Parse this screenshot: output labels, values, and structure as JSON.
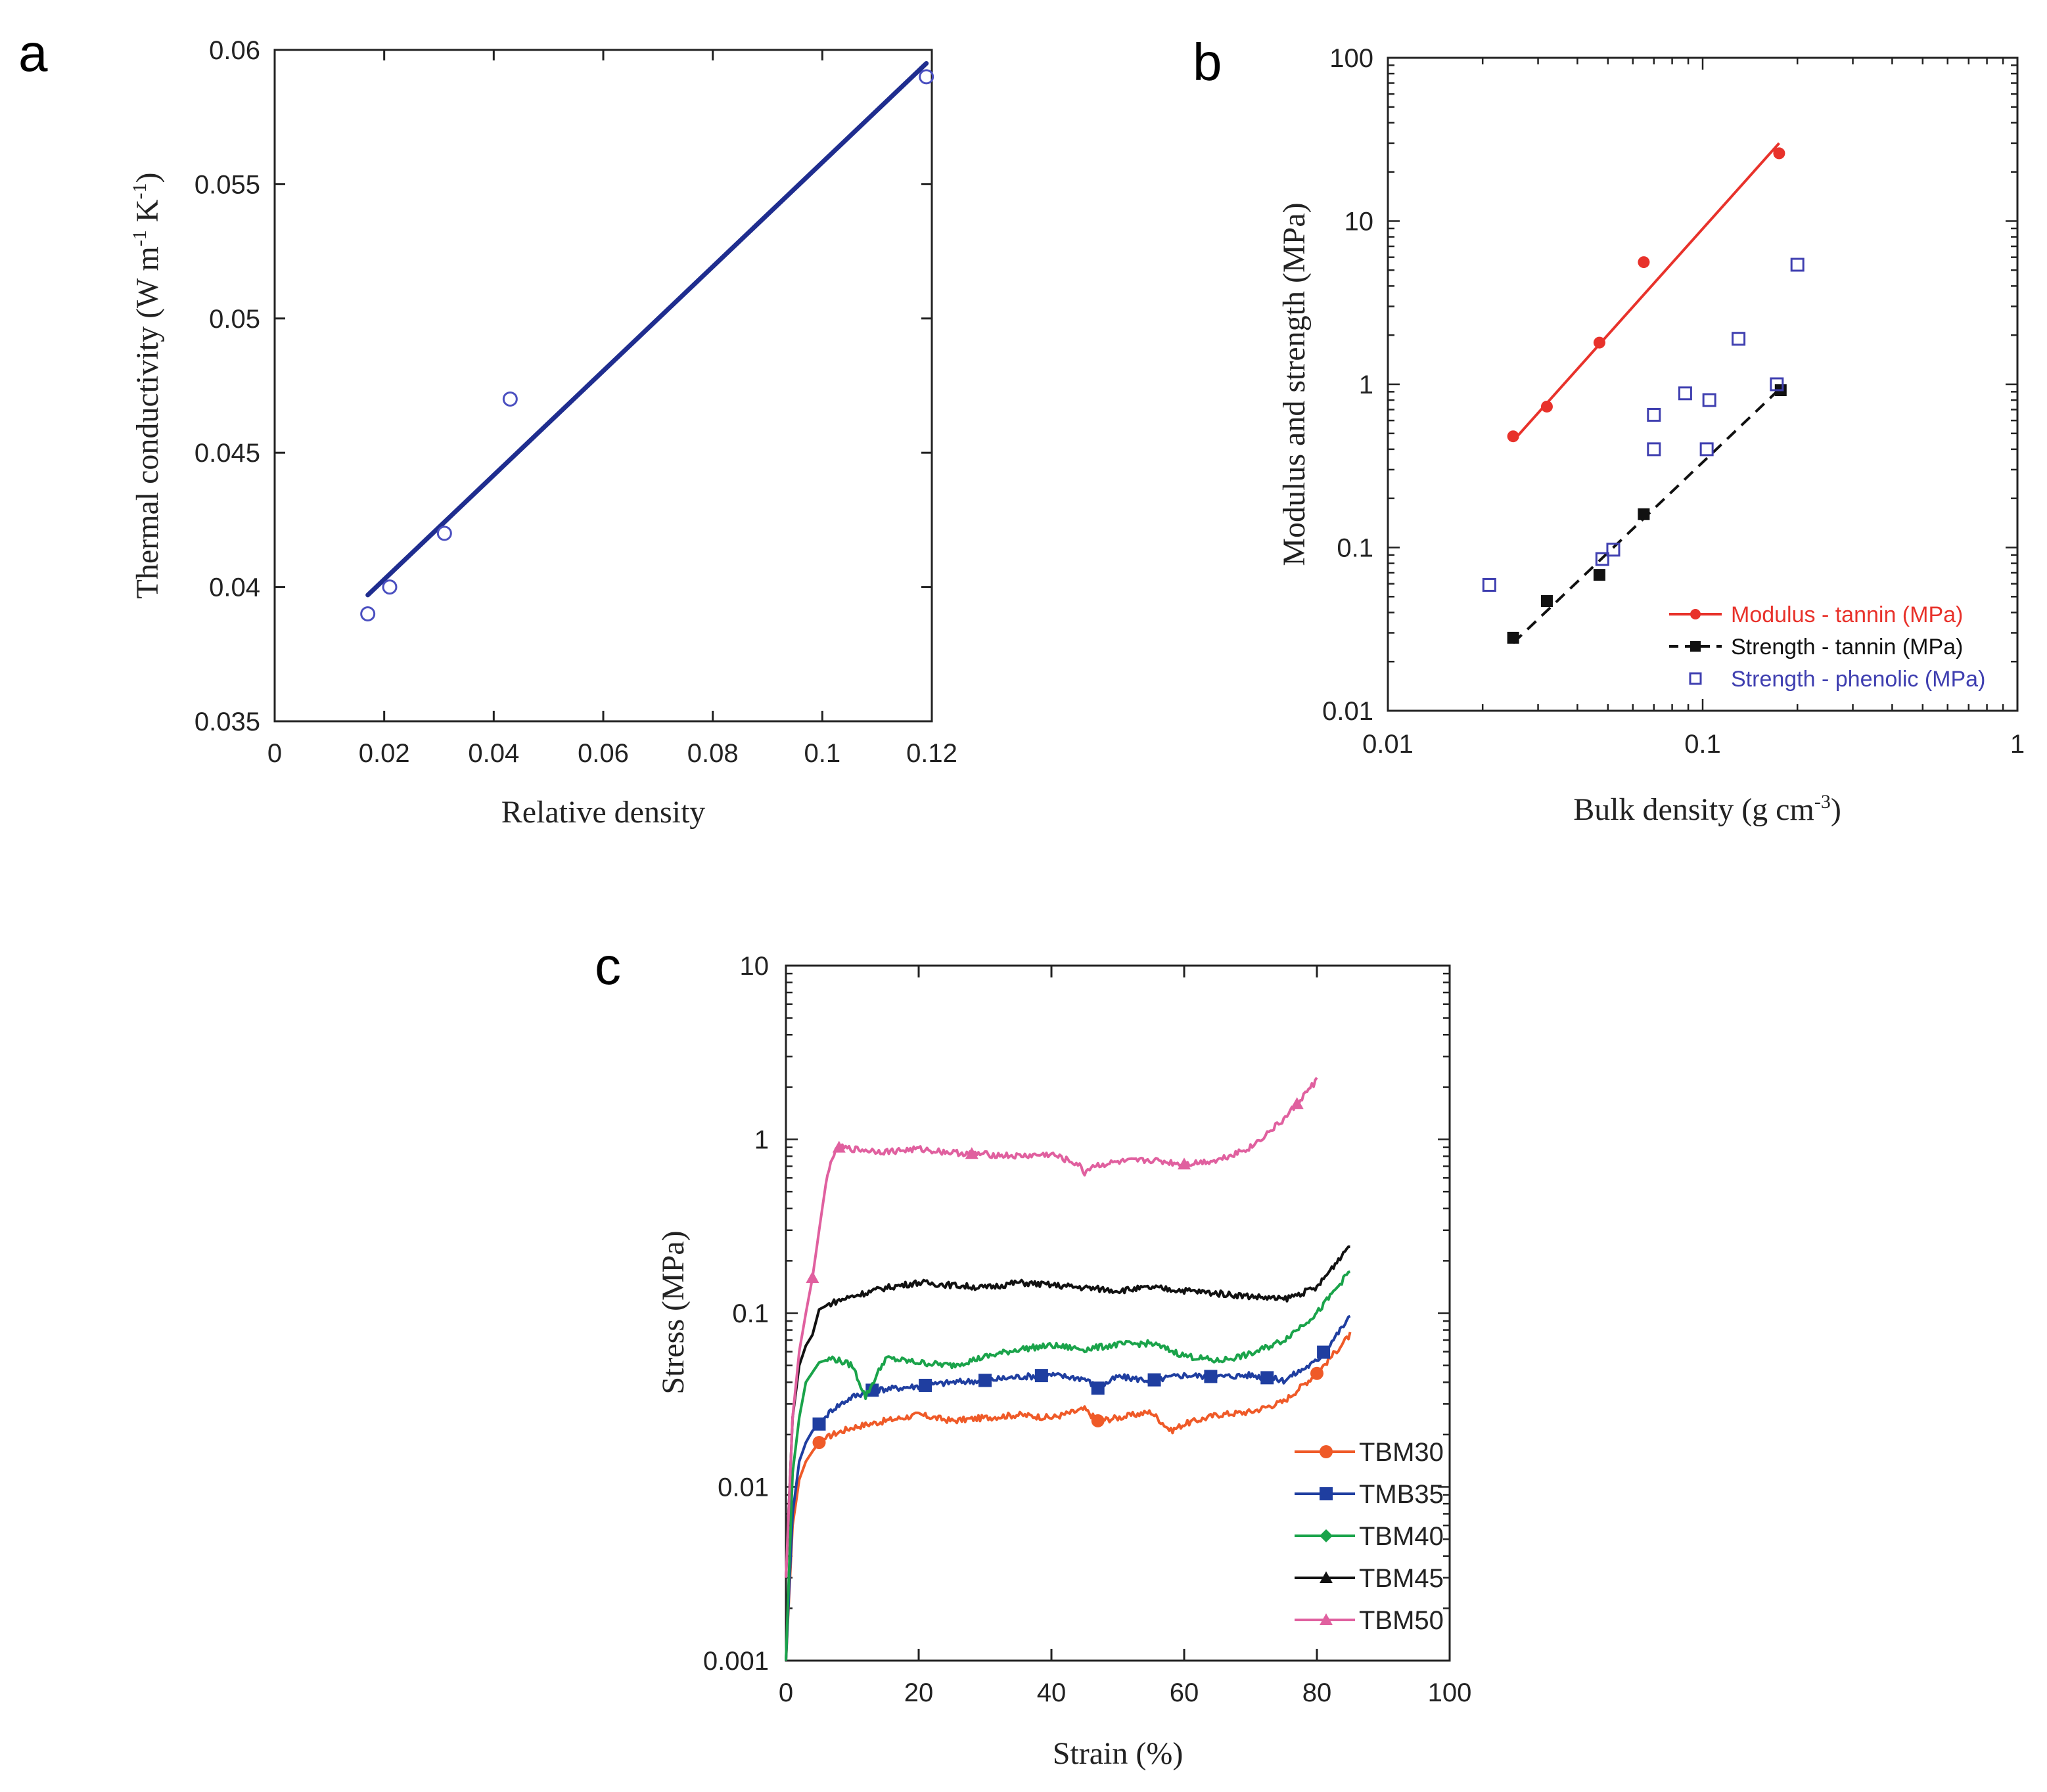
{
  "panels": {
    "a": "a",
    "b": "b",
    "c": "c"
  },
  "chart_data": [
    {
      "id": "a",
      "type": "scatter",
      "title": "",
      "xlabel": "Relative density",
      "ylabel": "Thermal conductivity (W m⁻¹ K⁻¹)",
      "ylabel_parts": {
        "main": "Thermal conductivity (W m",
        "sup1": "-1",
        "mid": " K",
        "sup2": "-1",
        "end": ")"
      },
      "xlim": [
        0,
        0.12
      ],
      "ylim": [
        0.035,
        0.06
      ],
      "xticks": [
        0,
        0.02,
        0.04,
        0.06,
        0.08,
        0.1,
        0.12
      ],
      "xtick_labels": [
        "0",
        "0.02",
        "0.04",
        "0.06",
        "0.08",
        "0.1",
        "0.12"
      ],
      "yticks": [
        0.035,
        0.04,
        0.045,
        0.05,
        0.055,
        0.06
      ],
      "ytick_labels": [
        "0.035",
        "0.04",
        "0.045",
        "0.05",
        "0.055",
        "0.06"
      ],
      "points": {
        "x": [
          0.017,
          0.021,
          0.031,
          0.043,
          0.119
        ],
        "y": [
          0.039,
          0.04,
          0.042,
          0.047,
          0.059
        ]
      },
      "fit_line": {
        "x": [
          0.017,
          0.119
        ],
        "y": [
          0.0397,
          0.0595
        ]
      },
      "colors": {
        "line": "#1f2d8f",
        "marker": "#4a4fc0"
      }
    },
    {
      "id": "b",
      "type": "scatter",
      "title": "",
      "xlabel": "Bulk density (g cm⁻³)",
      "xlabel_parts": {
        "main": "Bulk density (g cm",
        "sup": "-3",
        "end": ")"
      },
      "ylabel": "Modulus and strength (MPa)",
      "xscale": "log",
      "yscale": "log",
      "xlim": [
        0.01,
        1
      ],
      "ylim": [
        0.01,
        100
      ],
      "xtick_labels": [
        "0.01",
        "0.1",
        "1"
      ],
      "ytick_labels": [
        "0.01",
        "0.1",
        "1",
        "10",
        "100"
      ],
      "legend_position": "bottom-right",
      "series": [
        {
          "name": "Modulus - tannin (MPa)",
          "color": "#e8322b",
          "marker": "circle",
          "fit": "solid",
          "x": [
            0.025,
            0.032,
            0.047,
            0.065,
            0.175
          ],
          "y": [
            0.48,
            0.73,
            1.8,
            5.6,
            26
          ],
          "fit_line": {
            "x": [
              0.025,
              0.175
            ],
            "y": [
              0.45,
              30
            ]
          }
        },
        {
          "name": "Strength - tannin (MPa)",
          "color": "#111111",
          "marker": "square",
          "fit": "dashed",
          "x": [
            0.025,
            0.032,
            0.047,
            0.065,
            0.177
          ],
          "y": [
            0.028,
            0.047,
            0.068,
            0.16,
            0.92
          ],
          "fit_line": {
            "x": [
              0.025,
              0.177
            ],
            "y": [
              0.026,
              0.95
            ]
          }
        },
        {
          "name": "Strength - phenolic (MPa)",
          "color": "#3f3fb0",
          "marker": "open-square",
          "fit": "none",
          "x": [
            0.021,
            0.048,
            0.052,
            0.07,
            0.07,
            0.088,
            0.103,
            0.105,
            0.13,
            0.172,
            0.2
          ],
          "y": [
            0.059,
            0.085,
            0.097,
            0.4,
            0.65,
            0.88,
            0.4,
            0.8,
            1.9,
            1.0,
            5.4
          ]
        }
      ]
    },
    {
      "id": "c",
      "type": "line",
      "title": "",
      "xlabel": "Strain (%)",
      "ylabel": "Stress (MPa)",
      "yscale": "log",
      "xlim": [
        0,
        100
      ],
      "ylim": [
        0.001,
        10
      ],
      "xticks": [
        0,
        20,
        40,
        60,
        80,
        100
      ],
      "xtick_labels": [
        "0",
        "20",
        "40",
        "60",
        "80",
        "100"
      ],
      "ytick_labels": [
        "0.001",
        "0.01",
        "0.1",
        "1",
        "10"
      ],
      "legend_position": "bottom-right",
      "series": [
        {
          "name": "TBM30",
          "color": "#ef5a28",
          "marker": "circle",
          "x": [
            0,
            1,
            2,
            3,
            4,
            5,
            7,
            10,
            15,
            20,
            25,
            30,
            35,
            40,
            45,
            47,
            50,
            55,
            58,
            60,
            65,
            70,
            75,
            80,
            85
          ],
          "y": [
            0.001,
            0.006,
            0.011,
            0.014,
            0.016,
            0.018,
            0.02,
            0.022,
            0.024,
            0.026,
            0.024,
            0.025,
            0.026,
            0.025,
            0.028,
            0.024,
            0.025,
            0.027,
            0.021,
            0.023,
            0.026,
            0.027,
            0.031,
            0.045,
            0.075
          ],
          "marker_x": [
            5,
            47,
            80
          ]
        },
        {
          "name": "TMB35",
          "color": "#1f3ea0",
          "marker": "square",
          "x": [
            0,
            1,
            2,
            3,
            4,
            5,
            7,
            10,
            13,
            20,
            25,
            30,
            35,
            40,
            45,
            47,
            50,
            55,
            60,
            65,
            70,
            75,
            80,
            85
          ],
          "y": [
            0.001,
            0.007,
            0.014,
            0.018,
            0.021,
            0.023,
            0.028,
            0.033,
            0.036,
            0.038,
            0.04,
            0.041,
            0.043,
            0.044,
            0.042,
            0.037,
            0.043,
            0.041,
            0.044,
            0.043,
            0.044,
            0.041,
            0.053,
            0.095
          ],
          "marker_x": [
            5,
            13,
            21,
            30,
            38.5,
            47,
            55.5,
            64,
            72.5,
            81
          ]
        },
        {
          "name": "TBM40",
          "color": "#1aa34a",
          "marker": "diamond",
          "x": [
            0,
            1,
            2,
            3,
            5,
            7,
            10,
            12,
            15,
            20,
            25,
            30,
            35,
            40,
            45,
            50,
            55,
            60,
            65,
            70,
            75,
            80,
            85
          ],
          "y": [
            0.001,
            0.012,
            0.025,
            0.04,
            0.052,
            0.055,
            0.05,
            0.033,
            0.055,
            0.052,
            0.05,
            0.056,
            0.062,
            0.065,
            0.062,
            0.066,
            0.067,
            0.057,
            0.053,
            0.058,
            0.07,
            0.1,
            0.175
          ],
          "marker_x": []
        },
        {
          "name": "TBM45",
          "color": "#111111",
          "marker": "triangle",
          "x": [
            0,
            1,
            2,
            3,
            4,
            5,
            7,
            10,
            15,
            20,
            25,
            30,
            35,
            40,
            45,
            50,
            55,
            60,
            65,
            70,
            75,
            80,
            85
          ],
          "y": [
            0.003,
            0.025,
            0.05,
            0.065,
            0.075,
            0.105,
            0.115,
            0.125,
            0.14,
            0.15,
            0.145,
            0.14,
            0.15,
            0.145,
            0.14,
            0.135,
            0.14,
            0.135,
            0.13,
            0.125,
            0.12,
            0.14,
            0.25
          ],
          "marker_x": []
        },
        {
          "name": "TBM50",
          "color": "#e0609f",
          "marker": "triangle",
          "x": [
            0,
            1,
            2,
            3,
            4,
            5,
            6,
            7,
            8,
            10,
            15,
            20,
            25,
            30,
            35,
            40,
            44,
            45,
            46,
            50,
            55,
            60,
            65,
            70,
            75,
            80
          ],
          "y": [
            0.003,
            0.025,
            0.06,
            0.1,
            0.16,
            0.3,
            0.55,
            0.8,
            0.9,
            0.88,
            0.85,
            0.88,
            0.84,
            0.82,
            0.8,
            0.82,
            0.72,
            0.64,
            0.7,
            0.74,
            0.76,
            0.72,
            0.76,
            0.9,
            1.3,
            2.2
          ],
          "marker_x": [
            4,
            8,
            28,
            60,
            77
          ]
        }
      ]
    }
  ]
}
